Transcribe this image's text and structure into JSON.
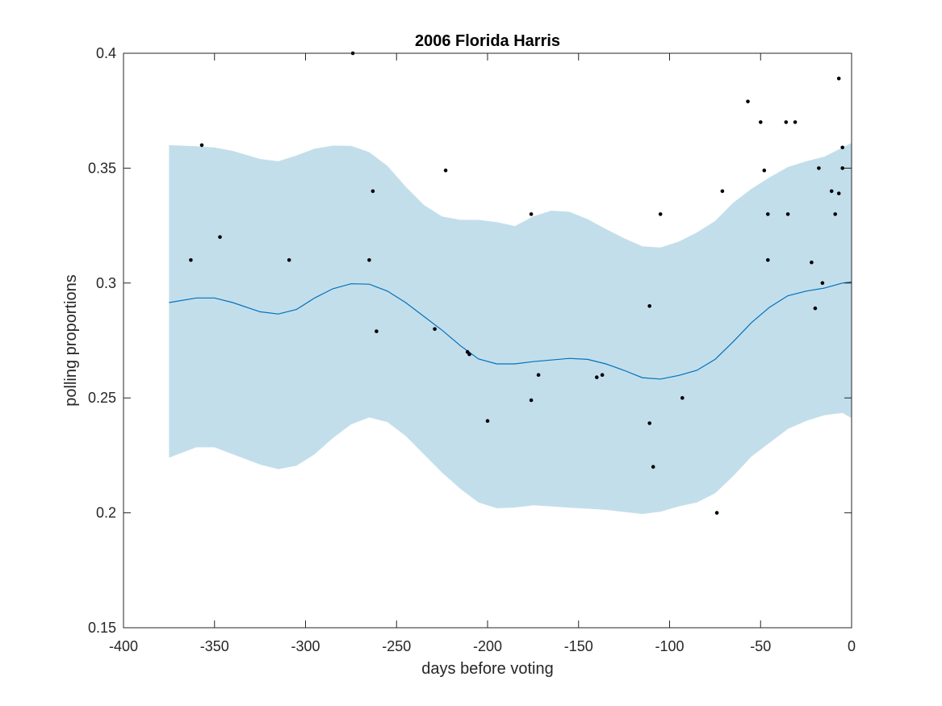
{
  "chart_data": {
    "type": "scatter",
    "title": "2006 Florida Harris",
    "xlabel": "days before voting",
    "ylabel": "polling proportions",
    "xlim": [
      -400,
      0
    ],
    "ylim": [
      0.15,
      0.4
    ],
    "xticks": [
      "-400",
      "-350",
      "-300",
      "-250",
      "-200",
      "-150",
      "-100",
      "-50",
      "0"
    ],
    "yticks": [
      "0.15",
      "0.2",
      "0.25",
      "0.3",
      "0.35",
      "0.4"
    ],
    "grid": false,
    "legend": "none",
    "colors": {
      "band": "#c3deeb",
      "line": "#0072bd",
      "points": "#000000",
      "axis": "#262626"
    },
    "series": [
      {
        "type": "area-band",
        "x": [
          -375,
          -360,
          -350,
          -340,
          -325,
          -315,
          -305,
          -295,
          -285,
          -275,
          -265,
          -255,
          -245,
          -235,
          -225,
          -215,
          -205,
          -195,
          -185,
          -175,
          -165,
          -155,
          -145,
          -135,
          -125,
          -115,
          -105,
          -95,
          -85,
          -75,
          -65,
          -55,
          -45,
          -35,
          -25,
          -15,
          -5,
          0
        ],
        "upper": [
          0.36,
          0.3595,
          0.359,
          0.3575,
          0.354,
          0.353,
          0.3555,
          0.3585,
          0.3598,
          0.3597,
          0.357,
          0.351,
          0.342,
          0.334,
          0.329,
          0.3275,
          0.3275,
          0.3265,
          0.3248,
          0.329,
          0.3315,
          0.331,
          0.3278,
          0.3235,
          0.3195,
          0.316,
          0.3155,
          0.318,
          0.322,
          0.327,
          0.335,
          0.341,
          0.346,
          0.3505,
          0.353,
          0.355,
          0.359,
          0.361
        ],
        "lower": [
          0.224,
          0.2285,
          0.2285,
          0.2255,
          0.221,
          0.219,
          0.2205,
          0.2255,
          0.2325,
          0.2385,
          0.2415,
          0.2395,
          0.2335,
          0.2255,
          0.2175,
          0.2105,
          0.2045,
          0.202,
          0.2023,
          0.2033,
          0.2028,
          0.2022,
          0.2018,
          0.2013,
          0.2004,
          0.1995,
          0.2005,
          0.2028,
          0.2045,
          0.2085,
          0.216,
          0.2245,
          0.2305,
          0.2365,
          0.24,
          0.2425,
          0.2435,
          0.2412
        ]
      },
      {
        "type": "line",
        "x": [
          -375,
          -360,
          -350,
          -340,
          -325,
          -315,
          -305,
          -295,
          -285,
          -275,
          -265,
          -255,
          -245,
          -235,
          -225,
          -215,
          -205,
          -195,
          -185,
          -175,
          -165,
          -155,
          -145,
          -135,
          -125,
          -115,
          -105,
          -95,
          -85,
          -75,
          -65,
          -55,
          -45,
          -35,
          -25,
          -15,
          -5,
          0
        ],
        "y": [
          0.2915,
          0.2935,
          0.2935,
          0.2915,
          0.2875,
          0.2865,
          0.2885,
          0.2935,
          0.2975,
          0.2997,
          0.2995,
          0.2965,
          0.2915,
          0.2855,
          0.2795,
          0.2728,
          0.267,
          0.2648,
          0.2648,
          0.2658,
          0.2665,
          0.2672,
          0.2668,
          0.2648,
          0.262,
          0.2588,
          0.2582,
          0.2598,
          0.262,
          0.2668,
          0.2745,
          0.2828,
          0.2895,
          0.2945,
          0.2965,
          0.2978,
          0.3,
          0.3005
        ]
      },
      {
        "type": "scatter",
        "points": [
          [
            -363,
            0.31
          ],
          [
            -357,
            0.36
          ],
          [
            -347,
            0.32
          ],
          [
            -309,
            0.31
          ],
          [
            -274,
            0.4
          ],
          [
            -265,
            0.31
          ],
          [
            -263,
            0.34
          ],
          [
            -261,
            0.279
          ],
          [
            -229,
            0.28
          ],
          [
            -223,
            0.349
          ],
          [
            -211,
            0.27
          ],
          [
            -210,
            0.269
          ],
          [
            -200,
            0.24
          ],
          [
            -176,
            0.33
          ],
          [
            -176,
            0.249
          ],
          [
            -172,
            0.26
          ],
          [
            -140,
            0.259
          ],
          [
            -137,
            0.26
          ],
          [
            -111,
            0.29
          ],
          [
            -111,
            0.239
          ],
          [
            -109,
            0.22
          ],
          [
            -105,
            0.33
          ],
          [
            -93,
            0.25
          ],
          [
            -74,
            0.2
          ],
          [
            -71,
            0.34
          ],
          [
            -57,
            0.379
          ],
          [
            -50,
            0.37
          ],
          [
            -48,
            0.349
          ],
          [
            -46,
            0.33
          ],
          [
            -46,
            0.31
          ],
          [
            -36,
            0.37
          ],
          [
            -35,
            0.33
          ],
          [
            -31,
            0.37
          ],
          [
            -22,
            0.309
          ],
          [
            -20,
            0.289
          ],
          [
            -18,
            0.35
          ],
          [
            -16,
            0.3
          ],
          [
            -11,
            0.34
          ],
          [
            -9,
            0.33
          ],
          [
            -7,
            0.389
          ],
          [
            -7,
            0.339
          ],
          [
            -5,
            0.359
          ],
          [
            -5,
            0.35
          ]
        ]
      }
    ]
  }
}
